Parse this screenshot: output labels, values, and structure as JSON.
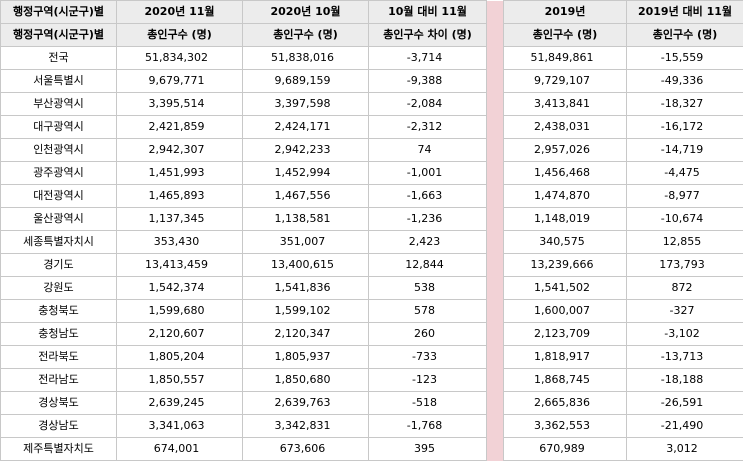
{
  "table": {
    "header_row1": [
      "행정구역(시군구)별",
      "2020년 11월",
      "2020년 10월",
      "10월 대비 11월",
      "2019년",
      "2019년 대비 11월"
    ],
    "header_row2": [
      "행정구역(시군구)별",
      "총인구수 (명)",
      "총인구수 (명)",
      "총인구수 차이 (명)",
      "총인구수 (명)",
      "총인구수 (명)"
    ],
    "rows": [
      [
        "전국",
        "51,834,302",
        "51,838,016",
        "-3,714",
        "51,849,861",
        "-15,559"
      ],
      [
        "서울특별시",
        "9,679,771",
        "9,689,159",
        "-9,388",
        "9,729,107",
        "-49,336"
      ],
      [
        "부산광역시",
        "3,395,514",
        "3,397,598",
        "-2,084",
        "3,413,841",
        "-18,327"
      ],
      [
        "대구광역시",
        "2,421,859",
        "2,424,171",
        "-2,312",
        "2,438,031",
        "-16,172"
      ],
      [
        "인천광역시",
        "2,942,307",
        "2,942,233",
        "74",
        "2,957,026",
        "-14,719"
      ],
      [
        "광주광역시",
        "1,451,993",
        "1,452,994",
        "-1,001",
        "1,456,468",
        "-4,475"
      ],
      [
        "대전광역시",
        "1,465,893",
        "1,467,556",
        "-1,663",
        "1,474,870",
        "-8,977"
      ],
      [
        "울산광역시",
        "1,137,345",
        "1,138,581",
        "-1,236",
        "1,148,019",
        "-10,674"
      ],
      [
        "세종특별자치시",
        "353,430",
        "351,007",
        "2,423",
        "340,575",
        "12,855"
      ],
      [
        "경기도",
        "13,413,459",
        "13,400,615",
        "12,844",
        "13,239,666",
        "173,793"
      ],
      [
        "강원도",
        "1,542,374",
        "1,541,836",
        "538",
        "1,541,502",
        "872"
      ],
      [
        "충청북도",
        "1,599,680",
        "1,599,102",
        "578",
        "1,600,007",
        "-327"
      ],
      [
        "충청남도",
        "2,120,607",
        "2,120,347",
        "260",
        "2,123,709",
        "-3,102"
      ],
      [
        "전라북도",
        "1,805,204",
        "1,805,937",
        "-733",
        "1,818,917",
        "-13,713"
      ],
      [
        "전라남도",
        "1,850,557",
        "1,850,680",
        "-123",
        "1,868,745",
        "-18,188"
      ],
      [
        "경상북도",
        "2,639,245",
        "2,639,763",
        "-518",
        "2,665,836",
        "-26,591"
      ],
      [
        "경상남도",
        "3,341,063",
        "3,342,831",
        "-1,768",
        "3,362,553",
        "-21,490"
      ],
      [
        "제주특별자치도",
        "674,001",
        "673,606",
        "395",
        "670,989",
        "3,012"
      ]
    ]
  },
  "colors": {
    "header_bg": "#ececec",
    "separator": "#f2d2d6",
    "border": "#c8c8c8"
  }
}
